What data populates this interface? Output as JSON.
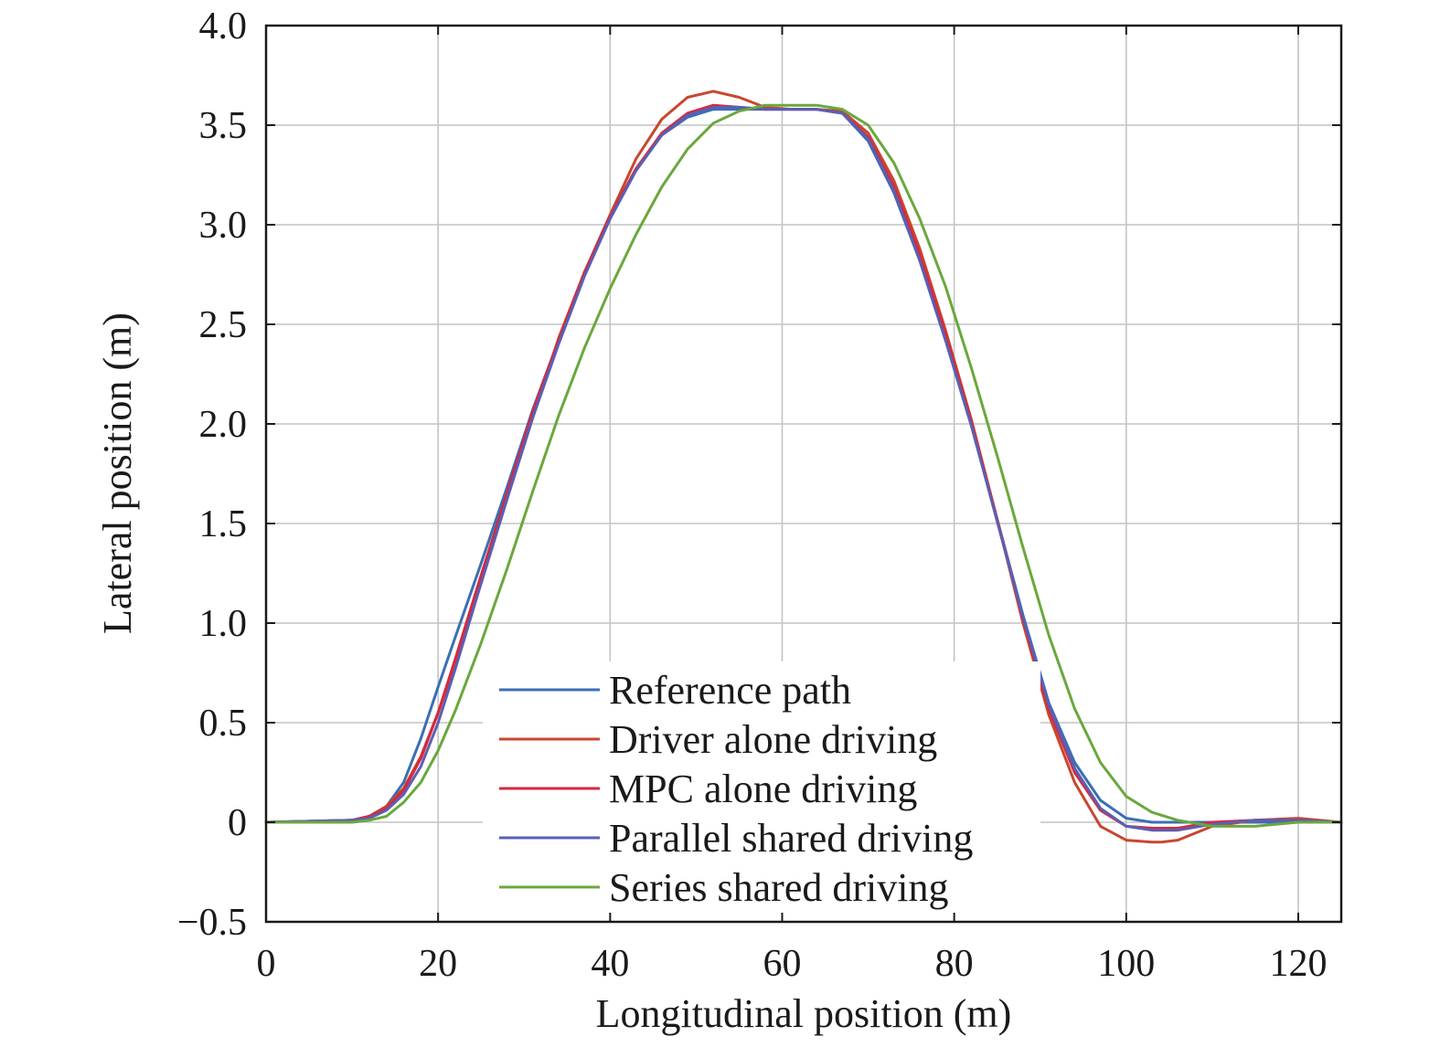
{
  "chart_data": {
    "type": "line",
    "title": "",
    "xlabel": "Longitudinal position (m)",
    "ylabel": "Lateral position (m)",
    "xlim": [
      0,
      125
    ],
    "ylim": [
      -0.5,
      4.0
    ],
    "xticks": [
      0,
      20,
      40,
      60,
      80,
      100,
      120
    ],
    "xtick_labels": [
      "0",
      "20",
      "40",
      "60",
      "80",
      "100",
      "120"
    ],
    "yticks": [
      -0.5,
      0,
      0.5,
      1.0,
      1.5,
      2.0,
      2.5,
      3.0,
      3.5,
      4.0
    ],
    "ytick_labels": [
      "−0.5",
      "0",
      "0.5",
      "1.0",
      "1.5",
      "2.0",
      "2.5",
      "3.0",
      "3.5",
      "4.0"
    ],
    "grid": true,
    "legend_position": "bottom-center",
    "series": [
      {
        "name": "Reference path",
        "color": "#3a6fb4",
        "x": [
          0,
          10,
          12,
          14,
          16,
          18,
          20,
          22,
          25,
          28,
          31,
          34,
          37,
          40,
          43,
          46,
          49,
          52,
          55,
          58,
          61,
          64,
          67,
          70,
          73,
          76,
          79,
          82,
          85,
          88,
          91,
          94,
          97,
          100,
          103,
          106,
          110,
          115,
          120,
          125
        ],
        "y": [
          0,
          0.01,
          0.03,
          0.08,
          0.2,
          0.42,
          0.68,
          0.93,
          1.3,
          1.68,
          2.07,
          2.42,
          2.75,
          3.04,
          3.28,
          3.45,
          3.54,
          3.58,
          3.58,
          3.58,
          3.58,
          3.58,
          3.56,
          3.42,
          3.16,
          2.82,
          2.42,
          1.99,
          1.52,
          1.04,
          0.6,
          0.3,
          0.11,
          0.02,
          0.0,
          0.0,
          0.0,
          0.0,
          0.0,
          0.0
        ]
      },
      {
        "name": "Driver alone driving",
        "color": "#c8472e",
        "x": [
          0,
          10,
          12,
          14,
          16,
          18,
          20,
          22,
          25,
          28,
          31,
          34,
          37,
          40,
          43,
          46,
          49,
          52,
          55,
          58,
          61,
          64,
          67,
          70,
          73,
          76,
          79,
          82,
          85,
          88,
          91,
          94,
          97,
          100,
          103,
          104,
          106,
          110,
          115,
          120,
          125
        ],
        "y": [
          0,
          0.01,
          0.03,
          0.08,
          0.17,
          0.33,
          0.55,
          0.8,
          1.2,
          1.62,
          2.03,
          2.43,
          2.76,
          3.05,
          3.33,
          3.53,
          3.64,
          3.67,
          3.64,
          3.59,
          3.58,
          3.58,
          3.57,
          3.46,
          3.22,
          2.88,
          2.47,
          2.02,
          1.52,
          1.0,
          0.54,
          0.2,
          -0.02,
          -0.09,
          -0.1,
          -0.1,
          -0.09,
          -0.02,
          0.01,
          0.02,
          0.0
        ]
      },
      {
        "name": "MPC alone driving",
        "color": "#d8283c",
        "x": [
          0,
          10,
          12,
          14,
          16,
          18,
          20,
          22,
          25,
          28,
          31,
          34,
          37,
          40,
          43,
          46,
          49,
          52,
          55,
          58,
          61,
          64,
          67,
          70,
          73,
          76,
          79,
          82,
          85,
          88,
          91,
          94,
          97,
          100,
          103,
          106,
          110,
          115,
          120,
          125
        ],
        "y": [
          0,
          0.01,
          0.03,
          0.07,
          0.16,
          0.32,
          0.55,
          0.82,
          1.24,
          1.65,
          2.06,
          2.42,
          2.76,
          3.04,
          3.28,
          3.46,
          3.56,
          3.6,
          3.59,
          3.58,
          3.58,
          3.58,
          3.56,
          3.44,
          3.19,
          2.85,
          2.45,
          2.01,
          1.52,
          1.02,
          0.57,
          0.25,
          0.06,
          -0.02,
          -0.03,
          -0.03,
          0.0,
          0.01,
          0.01,
          0.0
        ]
      },
      {
        "name": "Parallel shared driving",
        "color": "#5a5fb4",
        "x": [
          0,
          10,
          12,
          14,
          16,
          18,
          20,
          22,
          25,
          28,
          31,
          34,
          37,
          40,
          43,
          46,
          49,
          52,
          55,
          58,
          61,
          64,
          67,
          70,
          73,
          76,
          79,
          82,
          85,
          88,
          91,
          94,
          97,
          100,
          103,
          104,
          106,
          110,
          115,
          120,
          125
        ],
        "y": [
          0,
          0.01,
          0.02,
          0.06,
          0.14,
          0.28,
          0.5,
          0.77,
          1.2,
          1.62,
          2.03,
          2.4,
          2.74,
          3.03,
          3.27,
          3.45,
          3.55,
          3.59,
          3.59,
          3.58,
          3.58,
          3.58,
          3.56,
          3.43,
          3.17,
          2.82,
          2.42,
          1.99,
          1.51,
          1.03,
          0.59,
          0.27,
          0.07,
          -0.02,
          -0.04,
          -0.04,
          -0.04,
          -0.01,
          0.01,
          0.01,
          0.0
        ]
      },
      {
        "name": "Series shared driving",
        "color": "#6aa83e",
        "x": [
          0,
          10,
          12,
          14,
          16,
          18,
          20,
          22,
          25,
          28,
          31,
          34,
          37,
          40,
          43,
          46,
          49,
          52,
          55,
          58,
          61,
          64,
          67,
          70,
          73,
          76,
          79,
          82,
          85,
          88,
          91,
          94,
          97,
          100,
          103,
          106,
          110,
          115,
          120,
          125
        ],
        "y": [
          0,
          0.0,
          0.01,
          0.03,
          0.1,
          0.2,
          0.36,
          0.56,
          0.9,
          1.27,
          1.66,
          2.04,
          2.38,
          2.68,
          2.95,
          3.19,
          3.38,
          3.51,
          3.57,
          3.6,
          3.6,
          3.6,
          3.58,
          3.5,
          3.31,
          3.03,
          2.69,
          2.28,
          1.84,
          1.38,
          0.94,
          0.57,
          0.3,
          0.13,
          0.05,
          0.01,
          -0.02,
          -0.02,
          0.0,
          0.0
        ]
      }
    ]
  }
}
